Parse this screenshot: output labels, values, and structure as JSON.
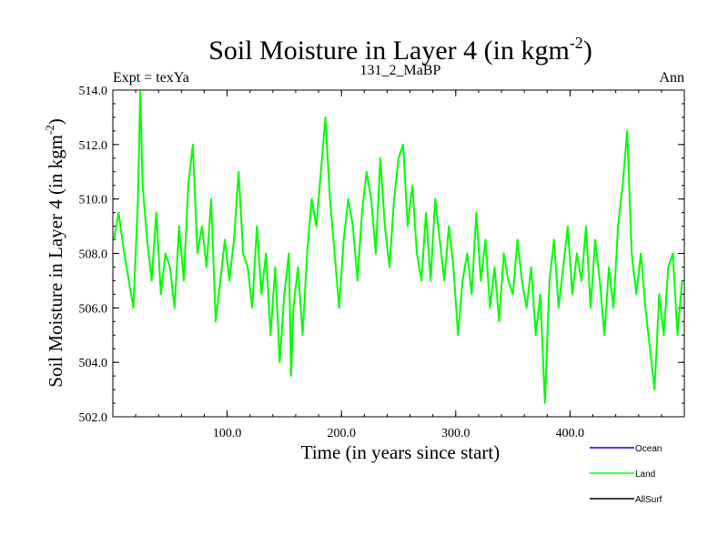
{
  "chart_data": {
    "type": "line",
    "title": "Soil Moisture in Layer 4 (in kgm",
    "title_superscript": "-2",
    "title_suffix": ")",
    "subtitle_left": "Expt = texYa",
    "subtitle_center": "131_2_MaBP",
    "subtitle_right": "Ann",
    "xlabel": "Time (in years since start)",
    "ylabel": "Soil Moisture in Layer 4 (in kgm",
    "ylabel_superscript": "-2",
    "ylabel_suffix": ")",
    "xlim": [
      0,
      500
    ],
    "ylim": [
      502,
      514
    ],
    "x_ticks": [
      {
        "value": 100,
        "label": "100.0"
      },
      {
        "value": 200,
        "label": "200.0"
      },
      {
        "value": 300,
        "label": "300.0"
      },
      {
        "value": 400,
        "label": "400.0"
      }
    ],
    "y_ticks": [
      {
        "value": 502,
        "label": "502.0"
      },
      {
        "value": 504,
        "label": "504.0"
      },
      {
        "value": 506,
        "label": "506.0"
      },
      {
        "value": 508,
        "label": "508.0"
      },
      {
        "value": 510,
        "label": "510.0"
      },
      {
        "value": 512,
        "label": "512.0"
      },
      {
        "value": 514,
        "label": "514.0"
      }
    ],
    "grid": false,
    "legend_position": "bottom-right",
    "legend": [
      {
        "name": "Ocean",
        "color": "#0000ff"
      },
      {
        "name": "Land",
        "color": "#00ff00"
      },
      {
        "name": "AllSurf",
        "color": "#000000"
      }
    ],
    "series": [
      {
        "name": "Land",
        "color": "#00ff00",
        "x": [
          1,
          5,
          10,
          14,
          18,
          22,
          24,
          26,
          30,
          34,
          38,
          42,
          46,
          50,
          54,
          58,
          62,
          66,
          70,
          74,
          78,
          82,
          86,
          90,
          94,
          98,
          102,
          106,
          110,
          114,
          118,
          122,
          126,
          130,
          134,
          138,
          142,
          146,
          150,
          154,
          156,
          158,
          162,
          166,
          170,
          174,
          178,
          182,
          186,
          190,
          194,
          198,
          202,
          206,
          210,
          214,
          218,
          222,
          226,
          230,
          234,
          238,
          242,
          246,
          250,
          254,
          258,
          262,
          266,
          270,
          274,
          278,
          282,
          286,
          290,
          294,
          298,
          302,
          306,
          310,
          314,
          318,
          322,
          326,
          330,
          334,
          338,
          342,
          346,
          350,
          354,
          358,
          362,
          366,
          370,
          374,
          378,
          382,
          386,
          390,
          394,
          398,
          402,
          406,
          410,
          414,
          418,
          422,
          426,
          430,
          434,
          438,
          442,
          446,
          450,
          454,
          458,
          462,
          466,
          470,
          474,
          478,
          482,
          486,
          490,
          494,
          498
        ],
        "y": [
          508.5,
          509.5,
          508.0,
          507.0,
          506.0,
          510.0,
          514.0,
          510.5,
          508.5,
          507.0,
          509.5,
          506.5,
          508.0,
          507.5,
          506.0,
          509.0,
          507.0,
          510.5,
          512.0,
          508.0,
          509.0,
          507.5,
          510.0,
          505.5,
          507.0,
          508.5,
          507.0,
          508.5,
          511.0,
          508.0,
          507.5,
          506.0,
          509.0,
          506.5,
          508.0,
          505.0,
          507.5,
          504.0,
          506.5,
          508.0,
          503.5,
          506.0,
          507.5,
          505.0,
          508.0,
          510.0,
          509.0,
          511.0,
          513.0,
          510.0,
          508.0,
          506.0,
          508.5,
          510.0,
          509.0,
          507.0,
          509.5,
          511.0,
          510.0,
          508.0,
          511.5,
          509.0,
          507.5,
          510.0,
          511.5,
          512.0,
          509.0,
          510.5,
          508.0,
          507.0,
          509.5,
          507.0,
          510.0,
          508.5,
          507.0,
          509.0,
          507.5,
          505.0,
          507.0,
          508.0,
          506.5,
          509.5,
          507.0,
          508.5,
          506.0,
          507.5,
          505.5,
          508.0,
          507.0,
          506.5,
          508.5,
          507.0,
          506.0,
          507.5,
          505.0,
          506.5,
          502.5,
          507.0,
          508.5,
          506.0,
          507.5,
          509.0,
          506.5,
          508.0,
          507.0,
          509.0,
          506.0,
          508.5,
          507.0,
          505.0,
          507.5,
          506.0,
          509.0,
          510.5,
          512.5,
          508.0,
          506.5,
          508.0,
          506.0,
          504.5,
          503.0,
          506.5,
          505.0,
          507.5,
          508.0,
          505.0,
          507.0
        ]
      }
    ]
  }
}
